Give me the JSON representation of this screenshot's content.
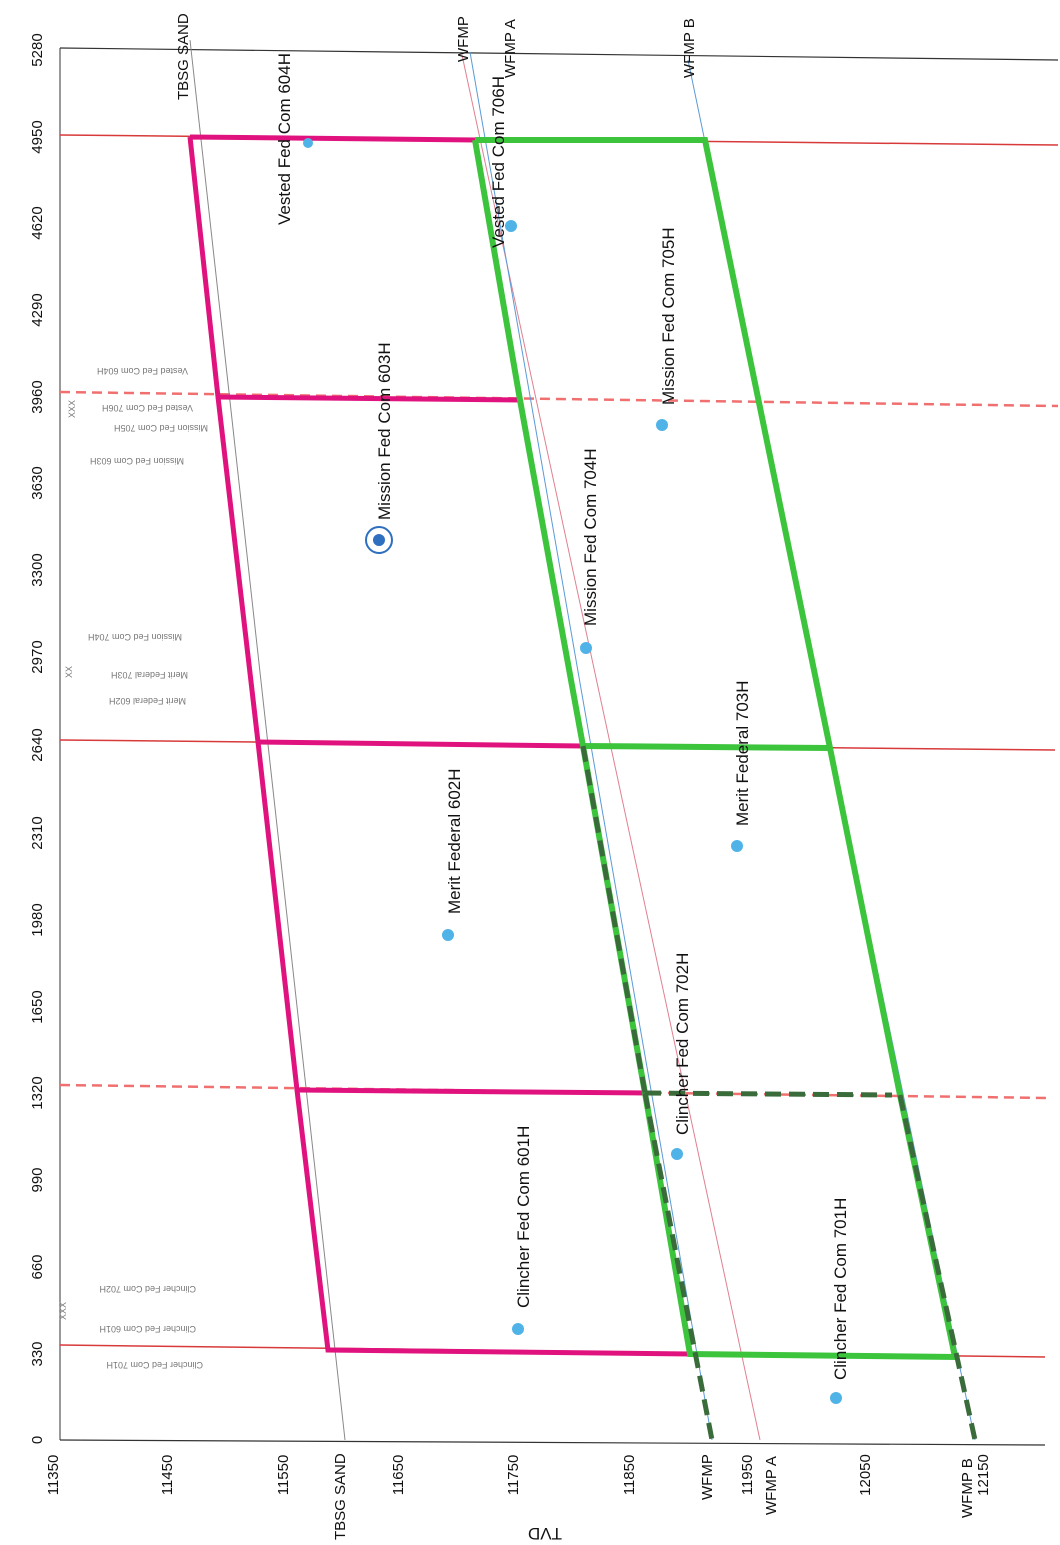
{
  "colors": {
    "tbsg": "#e0137e",
    "wfmp": "#3dc43d",
    "wfmp_dashed": "#3a6b3a",
    "section_line": "#d83a3a",
    "section_dash": "#f07070",
    "well_dot": "#4fb3e8",
    "well_dot_main": "#2f6fc0",
    "formation_line": "#e08090",
    "wfmpb_line": "#5a9ad8"
  },
  "axes": {
    "distance_ticks": [
      "0",
      "330",
      "660",
      "990",
      "1320",
      "1650",
      "1980",
      "2310",
      "2640",
      "2970",
      "3300",
      "3630",
      "3960",
      "4290",
      "4620",
      "4950",
      "5280"
    ],
    "tvd_ticks": [
      "11350",
      "11450",
      "11550",
      "11650",
      "11750",
      "11850",
      "11950",
      "12050",
      "12150"
    ],
    "tvd_title": "TVD"
  },
  "formations": {
    "tbsg_top": "TBSG SAND",
    "tbsg_bottom": "TBSG SAND",
    "wfmp_top": "WFMP",
    "wfmp_bottom": "WFMP",
    "wfmpa_top": "WFMP A",
    "wfmpa_bottom": "WFMP A",
    "wfmpb_top": "WFMP B",
    "wfmpb_bottom": "WFMP B"
  },
  "wells": [
    {
      "name": "Vested Fed Com 604H",
      "main": false
    },
    {
      "name": "Vested Fed Com 706H",
      "main": false
    },
    {
      "name": "Mission Fed Com 705H",
      "main": false
    },
    {
      "name": "Mission Fed Com 603H",
      "main": true
    },
    {
      "name": "Mission Fed Com 704H",
      "main": false
    },
    {
      "name": "Merit Federal 703H",
      "main": false
    },
    {
      "name": "Merit Federal 602H",
      "main": false
    },
    {
      "name": "Clincher Fed Com 702H",
      "main": false
    },
    {
      "name": "Clincher Fed Com 601H",
      "main": false
    },
    {
      "name": "Clincher Fed Com 701H",
      "main": false
    }
  ],
  "sidenotes": {
    "top": [
      "Vested Fed Com 604H",
      "Vested Fed Com 706H",
      "Mission Fed Com 705H",
      "Mission Fed Com 603H"
    ],
    "mid": [
      "Mission Fed Com 704H",
      "Merit Federal 703H",
      "Merit Federal 602H"
    ],
    "bottom": [
      "Clincher Fed Com 702H",
      "Clincher Fed Com 601H",
      "Clincher Fed Com 701H"
    ]
  }
}
